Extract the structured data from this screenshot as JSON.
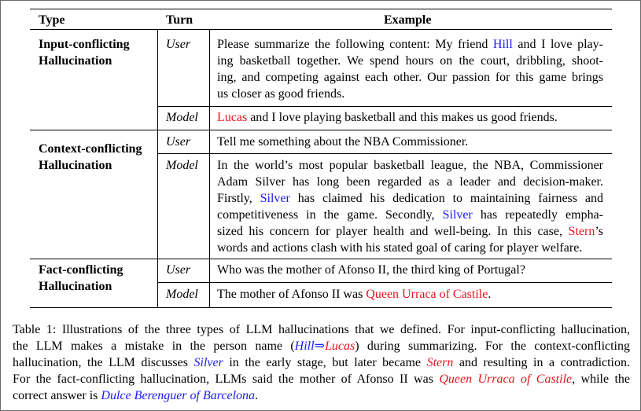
{
  "table": {
    "headers": {
      "type": "Type",
      "turn": "Turn",
      "example": "Example"
    },
    "groups": [
      {
        "type_lines": [
          "Input-conflicting",
          "Hallucination"
        ],
        "turns": [
          {
            "speaker": "User",
            "lines": [
              {
                "pre": "Please summarize the following content: My friend ",
                "blue": "Hill",
                "post": " and I love play-"
              },
              {
                "text": "ing basketball together. We spend hours on the court, dribbling, shoot-"
              },
              {
                "text": "ing, and competing against each other. Our passion for this game brings"
              },
              {
                "text": "us closer as good friends."
              }
            ]
          },
          {
            "speaker": "Model",
            "lines": [
              {
                "red": "Lucas",
                "post": " and I love playing basketball and this makes us good friends."
              }
            ]
          }
        ]
      },
      {
        "type_lines": [
          "Context-conflicting",
          "Hallucination"
        ],
        "turns": [
          {
            "speaker": "User",
            "lines": [
              {
                "text": "Tell me something about the NBA Commissioner."
              }
            ]
          },
          {
            "speaker": "Model",
            "lines": [
              {
                "text": "In the world’s most popular basketball league, the NBA, Commissioner"
              },
              {
                "text": "Adam Silver has long been regarded as a leader and decision-maker."
              },
              {
                "pre": "Firstly, ",
                "blue": "Silver",
                "post": " has claimed his dedication to maintaining fairness and"
              },
              {
                "text": "competitiveness in the game.  Secondly, ",
                "blue": "Silver",
                "post": " has repeatedly empha-"
              },
              {
                "text": "sized his concern for player health and well-being. In this case, ",
                "red": "Stern",
                "post": "’s"
              },
              {
                "text": "words and actions clash with his stated goal of caring for player welfare."
              }
            ]
          }
        ]
      },
      {
        "type_lines": [
          "Fact-conflicting",
          "Hallucination"
        ],
        "turns": [
          {
            "speaker": "User",
            "lines": [
              {
                "text": "Who was the mother of Afonso II, the third king of Portugal?"
              }
            ]
          },
          {
            "speaker": "Model",
            "lines": [
              {
                "pre": "The mother of Afonso II was ",
                "red": "Queen Urraca of Castile",
                "post": "."
              }
            ]
          }
        ]
      }
    ]
  },
  "caption": {
    "l1": "Table 1: Illustrations of the three types of LLM hallucinations that we defined. For input-conflicting hallucination,",
    "l2_pre": "the LLM makes a mistake in the person name (",
    "l2_hill": "Hill",
    "l2_arrow": "⇒",
    "l2_lucas": "Lucas",
    "l2_post": ") during summarizing.  For the context-conflicting",
    "l3_pre": "hallucination, the LLM discusses ",
    "l3_silver": "Silver",
    "l3_mid": " in the early stage, but later became ",
    "l3_stern": "Stern",
    "l3_post": " and resulting in a contradiction.",
    "l4_pre": "For the fact-conflicting hallucination, LLMs said the mother of Afonso II was ",
    "l4_urraca": "Queen Urraca of Castile",
    "l4_post": ", while the",
    "l5_pre": "correct answer is ",
    "l5_dulce": "Dulce Berenguer of Barcelona",
    "l5_post": "."
  },
  "colors": {
    "blue": "#1a1aff",
    "red": "#e8141e"
  }
}
